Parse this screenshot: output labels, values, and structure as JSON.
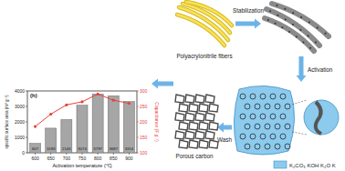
{
  "chart_data": {
    "type": "bar",
    "title": "(h)",
    "x_label": "Activation temperature (℃)",
    "y_label": "specific surface area (m² g⁻¹)",
    "y2_label": "Capacitance (F g⁻¹)",
    "x": [
      600,
      650,
      700,
      750,
      800,
      850,
      900
    ],
    "xlim": [
      575,
      925
    ],
    "xticks": [
      600,
      650,
      700,
      750,
      800,
      850,
      900
    ],
    "ylim": [
      0,
      4000
    ],
    "yticks": [
      0,
      1000,
      2000,
      3000,
      4000
    ],
    "y2lim": [
      100,
      300
    ],
    "y2ticks": [
      100,
      150,
      200,
      250,
      300
    ],
    "series": [
      {
        "type": "bar",
        "color": "#a6a6a6",
        "data_labels": true,
        "values": [
          607,
          1593,
          2146,
          3074,
          3797,
          3687,
          3314
        ]
      },
      {
        "type": "line",
        "axis": "y2",
        "color": "#e8413a",
        "marker": "circle",
        "values": [
          185,
          225,
          255,
          265,
          290,
          270,
          260
        ]
      }
    ]
  },
  "diagram": {
    "nodes": [
      {
        "label": "Polyacrylonitrile fibers"
      },
      {
        "label": "Porous carbon"
      }
    ],
    "arrows": [
      {
        "label": "Stabilization"
      },
      {
        "label": "Activation"
      },
      {
        "label": "Wash"
      }
    ],
    "legend": {
      "label": "K₂CO₃ KOH K₂O K"
    }
  }
}
